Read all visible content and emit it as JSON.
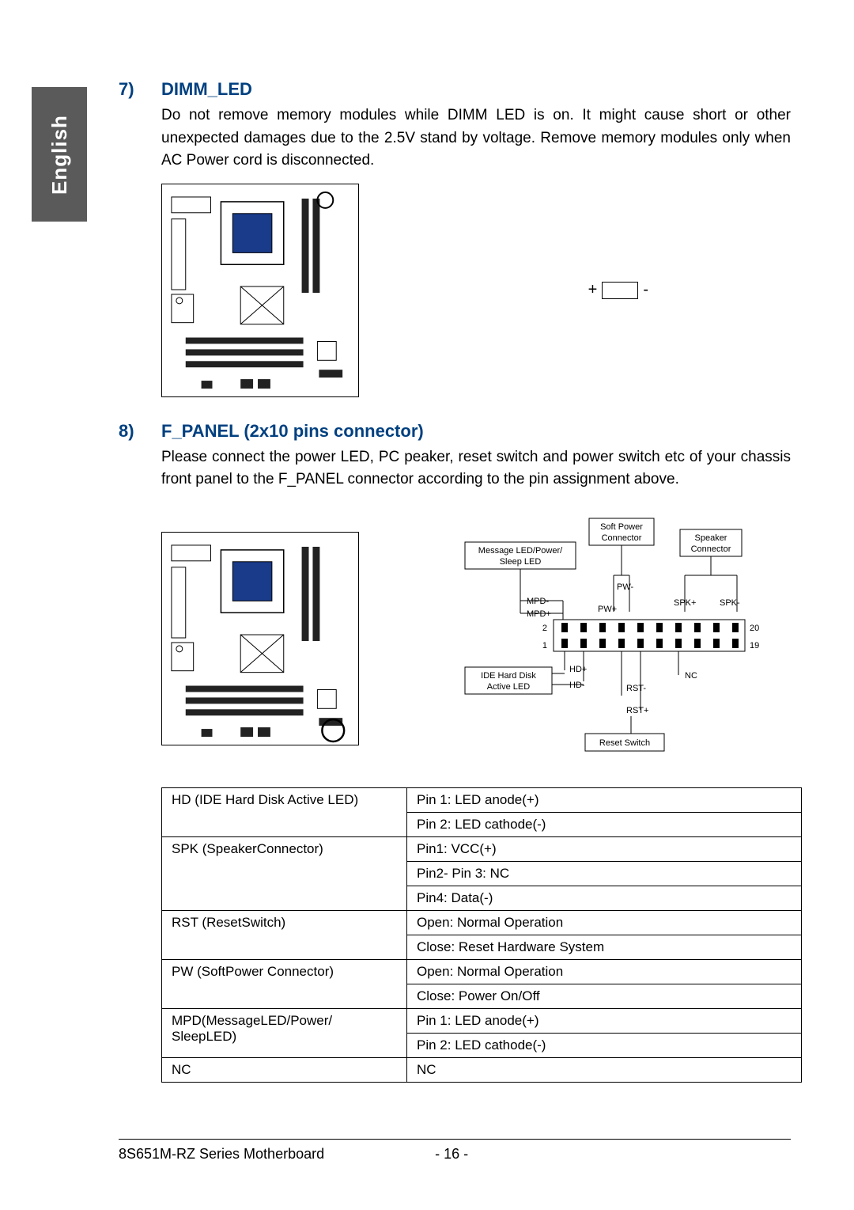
{
  "language_tab": "English",
  "section7": {
    "number": "7)",
    "title": "DIMM_LED",
    "body": "Do not remove memory modules while DIMM LED is on. It might cause short or other unexpected damages due to the 2.5V stand by voltage. Remove memory modules only when AC Power cord is disconnected.",
    "led_plus": "+",
    "led_minus": "-"
  },
  "section8": {
    "number": "8)",
    "title": "F_PANEL (2x10 pins connector)",
    "body": "Please connect the power LED, PC peaker, reset switch and power switch etc of your chassis front panel to the F_PANEL connector according to the pin assignment above.",
    "diagram": {
      "labels": {
        "soft_power": "Soft Power Connector",
        "speaker": "Speaker Connector",
        "msg_led": "Message LED/Power/ Sleep LED",
        "pw_minus": "PW-",
        "pw_plus": "PW+",
        "spk_plus": "SPK+",
        "spk_minus": "SPK-",
        "mpd_minus": "MPD-",
        "mpd_plus": "MPD+",
        "n2": "2",
        "n20": "20",
        "n1": "1",
        "n19": "19",
        "ide_led": "IDE Hard Disk Active LED",
        "hd_plus": "HD+",
        "hd_minus": "HD-",
        "nc": "NC",
        "rst_minus": "RST-",
        "rst_plus": "RST+",
        "reset_switch": "Reset Switch"
      },
      "colors": {
        "line": "#000000",
        "box_fill": "#ffffff"
      }
    }
  },
  "pin_table": {
    "rows": [
      {
        "name": "HD (IDE Hard Disk Active LED)",
        "lines": [
          "Pin 1: LED anode(+)",
          "Pin 2: LED cathode(-)"
        ]
      },
      {
        "name": "SPK (SpeakerConnector)",
        "lines": [
          "Pin1: VCC(+)",
          "Pin2- Pin 3: NC",
          "Pin4: Data(-)"
        ]
      },
      {
        "name": "RST (ResetSwitch)",
        "lines": [
          "Open: Normal Operation",
          "Close: Reset Hardware System"
        ]
      },
      {
        "name": "PW (SoftPower Connector)",
        "lines": [
          "Open: Normal Operation",
          "Close: Power On/Off"
        ]
      },
      {
        "name": "MPD(MessageLED/Power/ SleepLED)",
        "lines": [
          "Pin 1: LED anode(+)",
          "Pin 2: LED cathode(-)"
        ]
      },
      {
        "name": "NC",
        "lines": [
          "NC"
        ]
      }
    ]
  },
  "footer": {
    "title": "8S651M-RZ Series Motherboard",
    "page": "- 16 -"
  },
  "style": {
    "heading_color": "#004080",
    "tab_bg": "#5a5a5a",
    "body_fontsize": 19,
    "heading_fontsize": 22,
    "table_fontsize": 17
  }
}
